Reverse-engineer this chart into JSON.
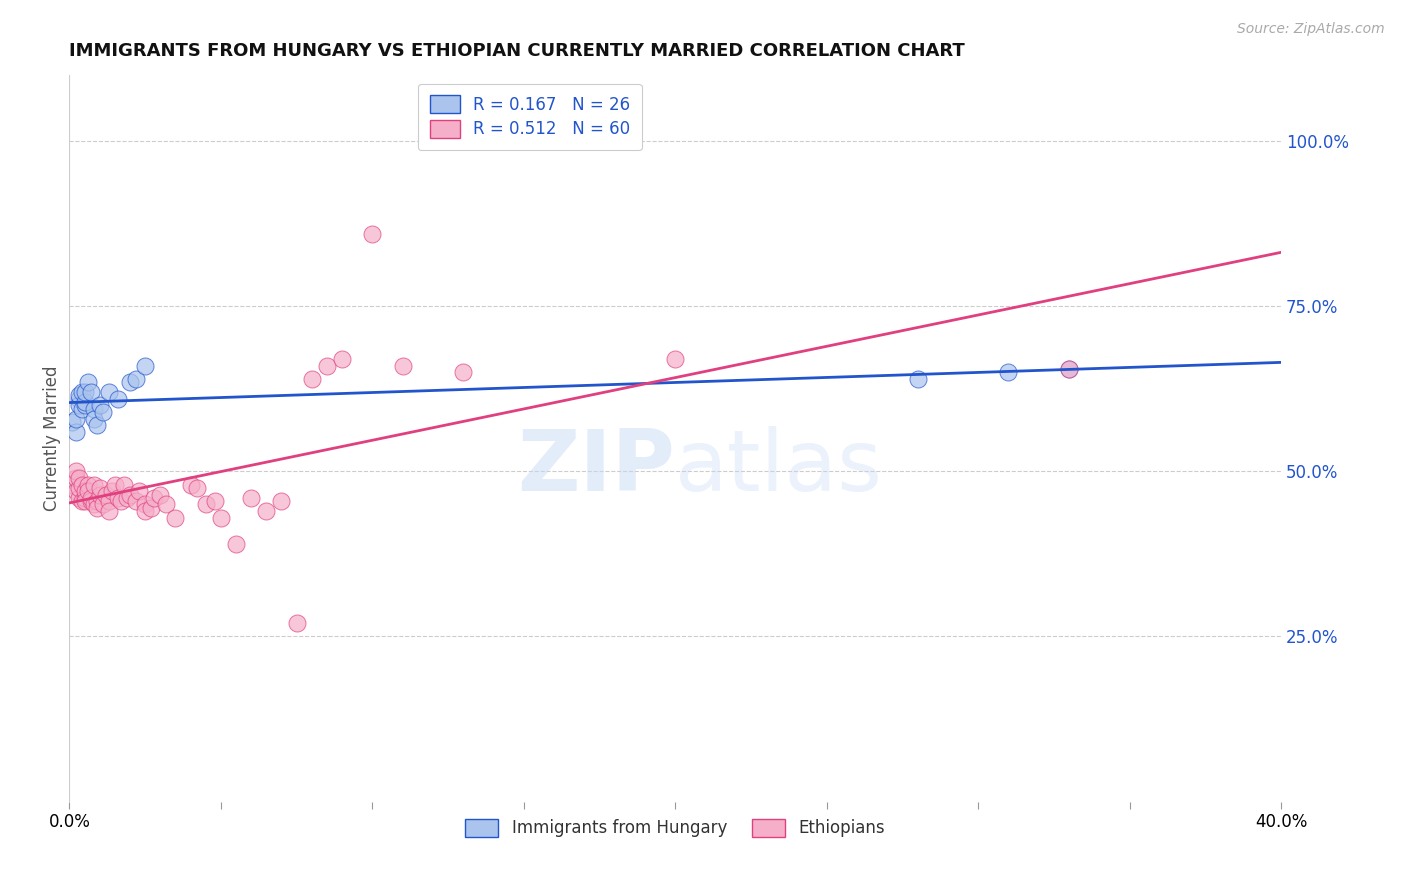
{
  "title": "IMMIGRANTS FROM HUNGARY VS ETHIOPIAN CURRENTLY MARRIED CORRELATION CHART",
  "source": "Source: ZipAtlas.com",
  "ylabel": "Currently Married",
  "right_yticks": [
    0.0,
    0.25,
    0.5,
    0.75,
    1.0
  ],
  "right_yticklabels": [
    "",
    "25.0%",
    "50.0%",
    "75.0%",
    "100.0%"
  ],
  "xmin": 0.0,
  "xmax": 0.4,
  "ymin": 0.0,
  "ymax": 1.1,
  "blue_R": 0.167,
  "blue_N": 26,
  "pink_R": 0.512,
  "pink_N": 60,
  "blue_label": "Immigrants from Hungary",
  "pink_label": "Ethiopians",
  "blue_color": "#aac4ed",
  "pink_color": "#f5afc8",
  "blue_line_color": "#2255cc",
  "pink_line_color": "#e04080",
  "blue_scatter_x": [
    0.001,
    0.002,
    0.002,
    0.003,
    0.003,
    0.003,
    0.004,
    0.004,
    0.005,
    0.005,
    0.005,
    0.006,
    0.007,
    0.008,
    0.008,
    0.009,
    0.01,
    0.011,
    0.013,
    0.016,
    0.02,
    0.022,
    0.025,
    0.28,
    0.31,
    0.33
  ],
  "blue_scatter_y": [
    0.575,
    0.56,
    0.58,
    0.61,
    0.6,
    0.615,
    0.595,
    0.62,
    0.6,
    0.605,
    0.62,
    0.635,
    0.62,
    0.595,
    0.58,
    0.57,
    0.6,
    0.59,
    0.62,
    0.61,
    0.635,
    0.64,
    0.66,
    0.64,
    0.65,
    0.655
  ],
  "pink_scatter_x": [
    0.001,
    0.002,
    0.002,
    0.002,
    0.003,
    0.003,
    0.003,
    0.004,
    0.004,
    0.005,
    0.005,
    0.005,
    0.006,
    0.006,
    0.007,
    0.007,
    0.008,
    0.008,
    0.009,
    0.009,
    0.01,
    0.01,
    0.011,
    0.012,
    0.013,
    0.013,
    0.014,
    0.015,
    0.016,
    0.017,
    0.018,
    0.019,
    0.02,
    0.022,
    0.023,
    0.025,
    0.025,
    0.027,
    0.028,
    0.03,
    0.032,
    0.035,
    0.04,
    0.042,
    0.045,
    0.048,
    0.05,
    0.055,
    0.06,
    0.065,
    0.07,
    0.075,
    0.08,
    0.085,
    0.09,
    0.1,
    0.11,
    0.13,
    0.2,
    0.33
  ],
  "pink_scatter_y": [
    0.48,
    0.47,
    0.49,
    0.5,
    0.46,
    0.475,
    0.49,
    0.455,
    0.48,
    0.46,
    0.47,
    0.455,
    0.48,
    0.47,
    0.455,
    0.46,
    0.48,
    0.45,
    0.455,
    0.445,
    0.465,
    0.475,
    0.45,
    0.465,
    0.455,
    0.44,
    0.47,
    0.48,
    0.46,
    0.455,
    0.48,
    0.46,
    0.465,
    0.455,
    0.47,
    0.45,
    0.44,
    0.445,
    0.46,
    0.465,
    0.45,
    0.43,
    0.48,
    0.475,
    0.45,
    0.455,
    0.43,
    0.39,
    0.46,
    0.44,
    0.455,
    0.27,
    0.64,
    0.66,
    0.67,
    0.86,
    0.66,
    0.65,
    0.67,
    0.655
  ],
  "watermark_zip": "ZIP",
  "watermark_atlas": "atlas",
  "background_color": "#ffffff",
  "grid_color": "#cccccc",
  "title_fontsize": 13,
  "legend_fontsize": 12
}
